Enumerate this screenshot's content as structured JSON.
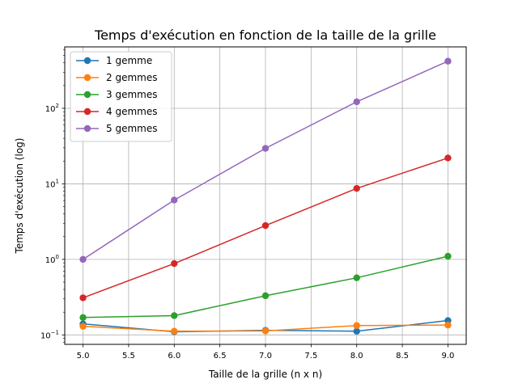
{
  "chart_data": {
    "type": "line",
    "title": "Temps d'exécution en fonction de la taille de la grille",
    "xlabel": "Taille de la grille (n x n)",
    "ylabel": "Temps d'exécution (log)",
    "x": [
      5,
      6,
      7,
      8,
      9
    ],
    "xlim": [
      4.8,
      9.2
    ],
    "ylim": [
      0.075,
      650
    ],
    "yscale": "log",
    "grid": true,
    "legend_position": "top-left",
    "x_ticks": [
      "5.0",
      "5.5",
      "6.0",
      "6.5",
      "7.0",
      "7.5",
      "8.0",
      "8.5",
      "9.0"
    ],
    "y_ticks": [
      {
        "base": "10",
        "exp": "−1"
      },
      {
        "base": "10",
        "exp": "0"
      },
      {
        "base": "10",
        "exp": "1"
      },
      {
        "base": "10",
        "exp": "2"
      }
    ],
    "series": [
      {
        "name": "1 gemme",
        "color": "#1f77b4",
        "values": [
          0.14,
          0.11,
          0.115,
          0.112,
          0.155
        ]
      },
      {
        "name": "2 gemmes",
        "color": "#ff7f0e",
        "values": [
          0.13,
          0.112,
          0.113,
          0.133,
          0.135
        ]
      },
      {
        "name": "3 gemmes",
        "color": "#2ca02c",
        "values": [
          0.17,
          0.18,
          0.33,
          0.57,
          1.1
        ]
      },
      {
        "name": "4 gemmes",
        "color": "#d62728",
        "values": [
          0.31,
          0.88,
          2.8,
          8.7,
          22
        ]
      },
      {
        "name": "5 gemmes",
        "color": "#9467bd",
        "values": [
          1.0,
          6.1,
          29.5,
          122,
          420
        ]
      }
    ]
  }
}
